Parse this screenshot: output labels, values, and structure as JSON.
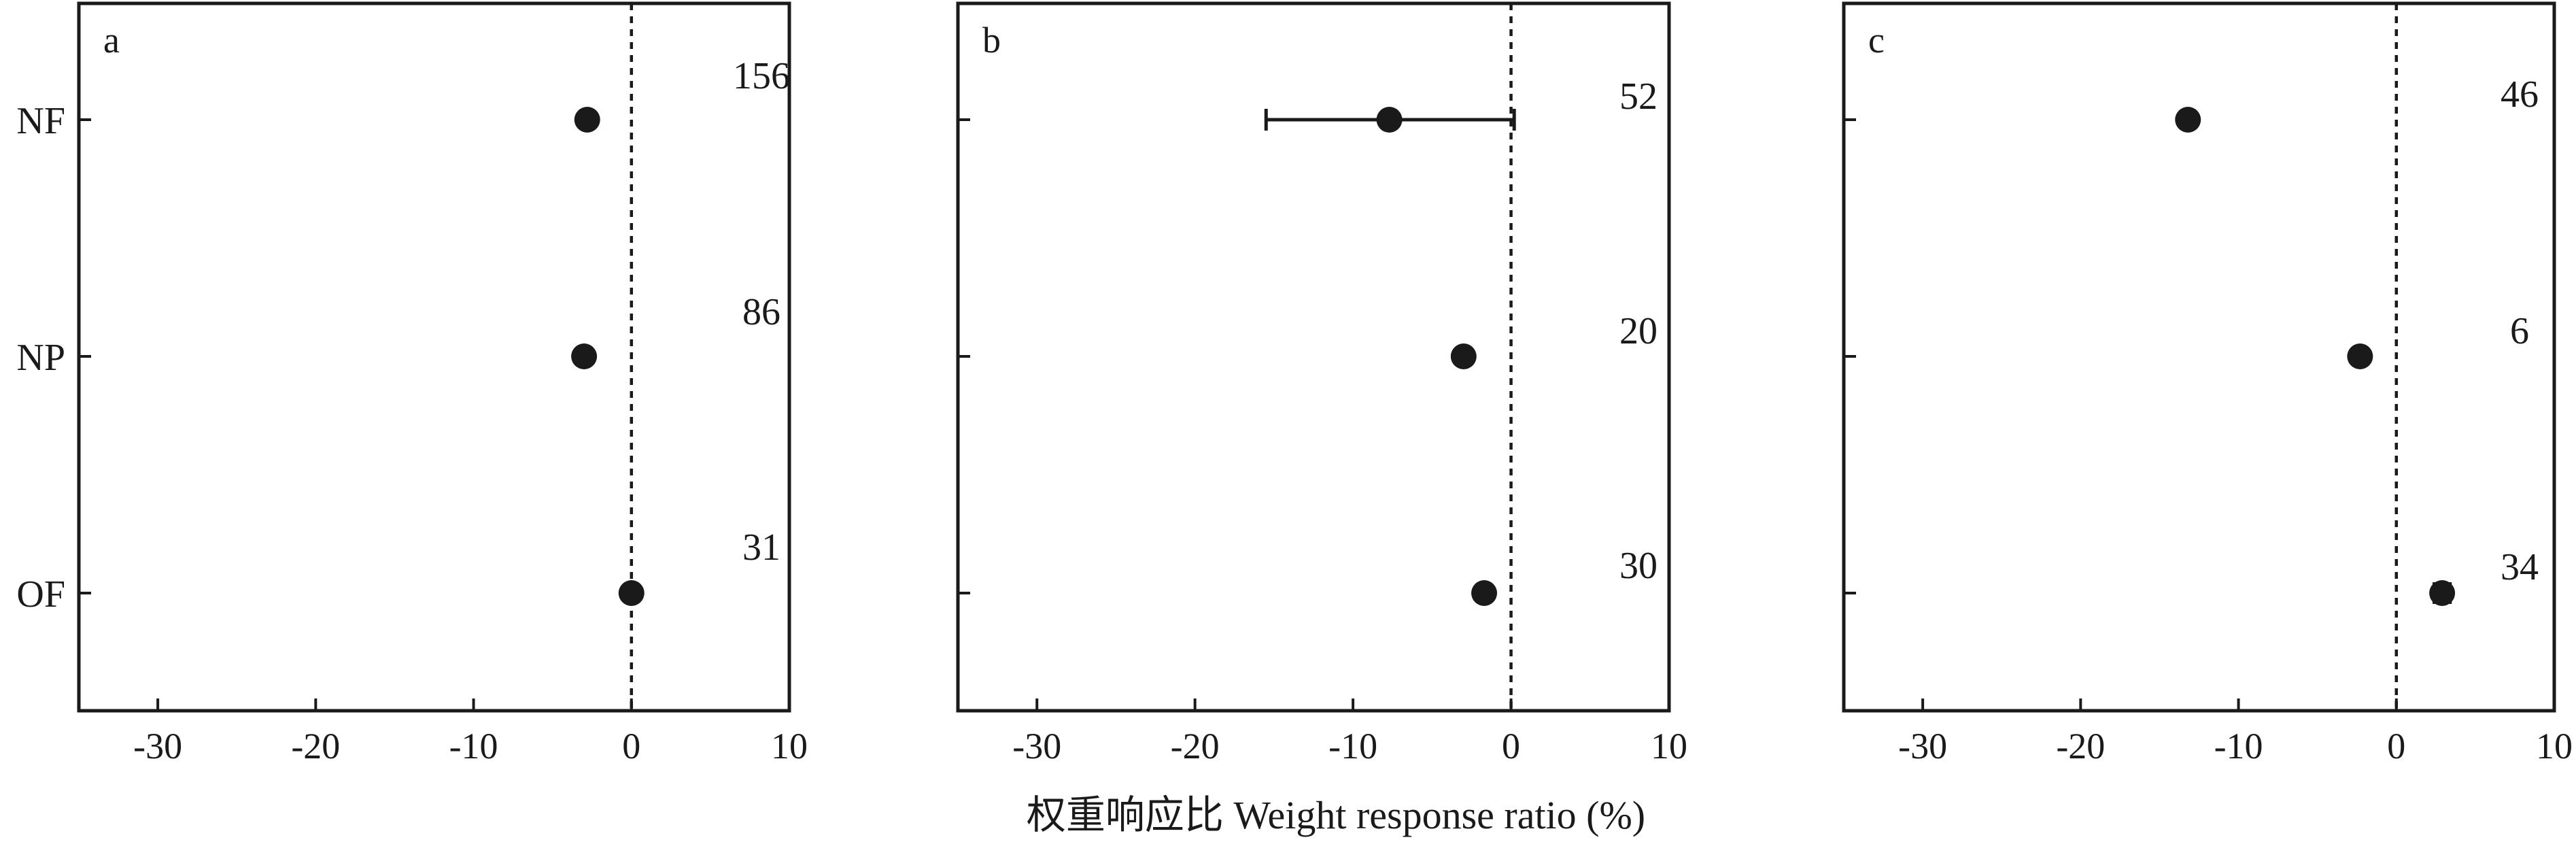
{
  "chart_data": [
    {
      "type": "scatter",
      "panel": "a",
      "categories": [
        "NF",
        "NP",
        "OF"
      ],
      "values": [
        -2.8,
        -3.0,
        0.0
      ],
      "error": [
        null,
        null,
        null
      ],
      "n": [
        "156",
        "86",
        "31"
      ],
      "xlim": [
        -35,
        10
      ],
      "xticks": [
        "-30",
        "-20",
        "-10",
        "0",
        "10"
      ],
      "reference_line": 0
    },
    {
      "type": "scatter",
      "panel": "b",
      "categories": [
        "NF",
        "NP",
        "OF"
      ],
      "values": [
        -7.7,
        -3.0,
        -1.7
      ],
      "error": [
        [
          -15.5,
          0.2
        ],
        null,
        null
      ],
      "n": [
        "52",
        "20",
        "30"
      ],
      "xlim": [
        -35,
        10
      ],
      "xticks": [
        "-30",
        "-20",
        "-10",
        "0",
        "10"
      ],
      "reference_line": 0
    },
    {
      "type": "scatter",
      "panel": "c",
      "categories": [
        "NF",
        "NP",
        "OF"
      ],
      "values": [
        -13.2,
        -2.3,
        2.9
      ],
      "error": [
        null,
        null,
        [
          2.4,
          3.4
        ]
      ],
      "n": [
        "46",
        "6",
        "34"
      ],
      "xlim": [
        -35,
        10
      ],
      "xticks": [
        "-30",
        "-20",
        "-10",
        "0",
        "10"
      ],
      "reference_line": 0
    }
  ],
  "xlabel": "权重响应比 Weight response ratio (%)",
  "colors": {
    "ink": "#1a1a1a",
    "background": "#ffffff"
  }
}
